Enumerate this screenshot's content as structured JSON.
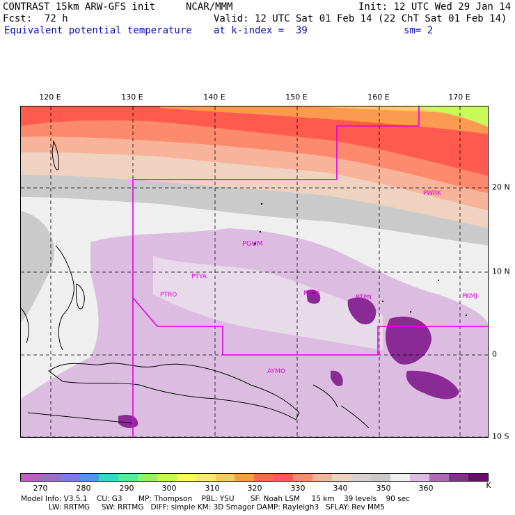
{
  "header": {
    "title_left": "CONTRAST 15km ARW-GFS init",
    "title_center": "NCAR/MMM",
    "init": "Init: 12 UTC Wed 29 Jan 14",
    "fcst_label": "Fcst:",
    "fcst_value": "72 h",
    "valid": "Valid: 12 UTC Sat 01 Feb 14 (22 ChT Sat 01 Feb 14)",
    "field": "Equivalent potential temperature",
    "level": "at k-index =  39",
    "smoothing": "sm= 2"
  },
  "map": {
    "lon_labels": [
      "120 E",
      "130 E",
      "140 E",
      "150 E",
      "160 E",
      "170 E"
    ],
    "lat_labels": [
      "20 N",
      "10 N",
      "0",
      "10 S"
    ],
    "stations": [
      "PGUM",
      "PTYA",
      "PTRO",
      "PTKK",
      "PTPN",
      "PKMJ",
      "PWAK",
      "AYMO"
    ]
  },
  "colorbar": {
    "unit": "K",
    "labels": [
      "270",
      "280",
      "290",
      "300",
      "310",
      "320",
      "330",
      "340",
      "350",
      "360"
    ],
    "colors": [
      "#c25ac7",
      "#9e6ccc",
      "#7f7ee0",
      "#4f99e3",
      "#38d6c7",
      "#5bea9a",
      "#8ff56a",
      "#c8fb5a",
      "#fdfb5b",
      "#fde67c",
      "#fdc770",
      "#fd9a52",
      "#fd6a4a",
      "#ff5a4e",
      "#fe8a6e",
      "#f8b49a",
      "#efd3c0",
      "#d8d2ce",
      "#cacaca",
      "#efefef",
      "#dcbde1",
      "#b06ab8",
      "#8a2a95",
      "#6a0a72"
    ]
  },
  "model_info": {
    "line1": "Model Info: V3.5.1    CU: G3       MP: Thompson    PBL: YSU       SF: Noah LSM     15 km    39 levels    90 sec",
    "line2": "            LW: RRTMG     SW: RRTMG   DIFF: simple KM: 3D Smagor DAMP: Rayleigh3   SFLAY: Rev MM5"
  }
}
